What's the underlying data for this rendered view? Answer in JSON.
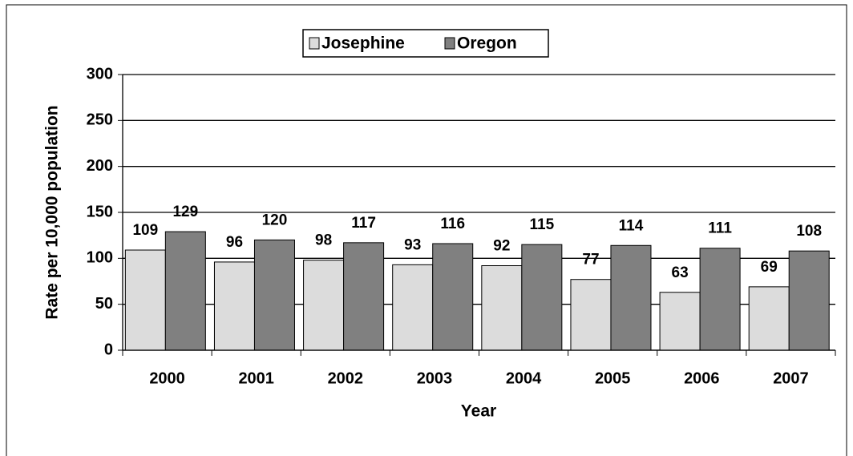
{
  "chart_data": {
    "type": "bar",
    "x_label": "Year",
    "y_label": "Rate per 10,000 population",
    "categories": [
      "2000",
      "2001",
      "2002",
      "2003",
      "2004",
      "2005",
      "2006",
      "2007"
    ],
    "series": [
      {
        "name": "Josephine",
        "color": "#dcdcdc",
        "values": [
          109,
          96,
          98,
          93,
          92,
          77,
          63,
          69
        ]
      },
      {
        "name": "Oregon",
        "color": "#808080",
        "values": [
          129,
          120,
          117,
          116,
          115,
          114,
          111,
          108
        ]
      }
    ],
    "ylim": [
      0,
      300
    ],
    "yticks": [
      0,
      50,
      100,
      150,
      200,
      250,
      300
    ],
    "grid": true,
    "legend": "top"
  }
}
